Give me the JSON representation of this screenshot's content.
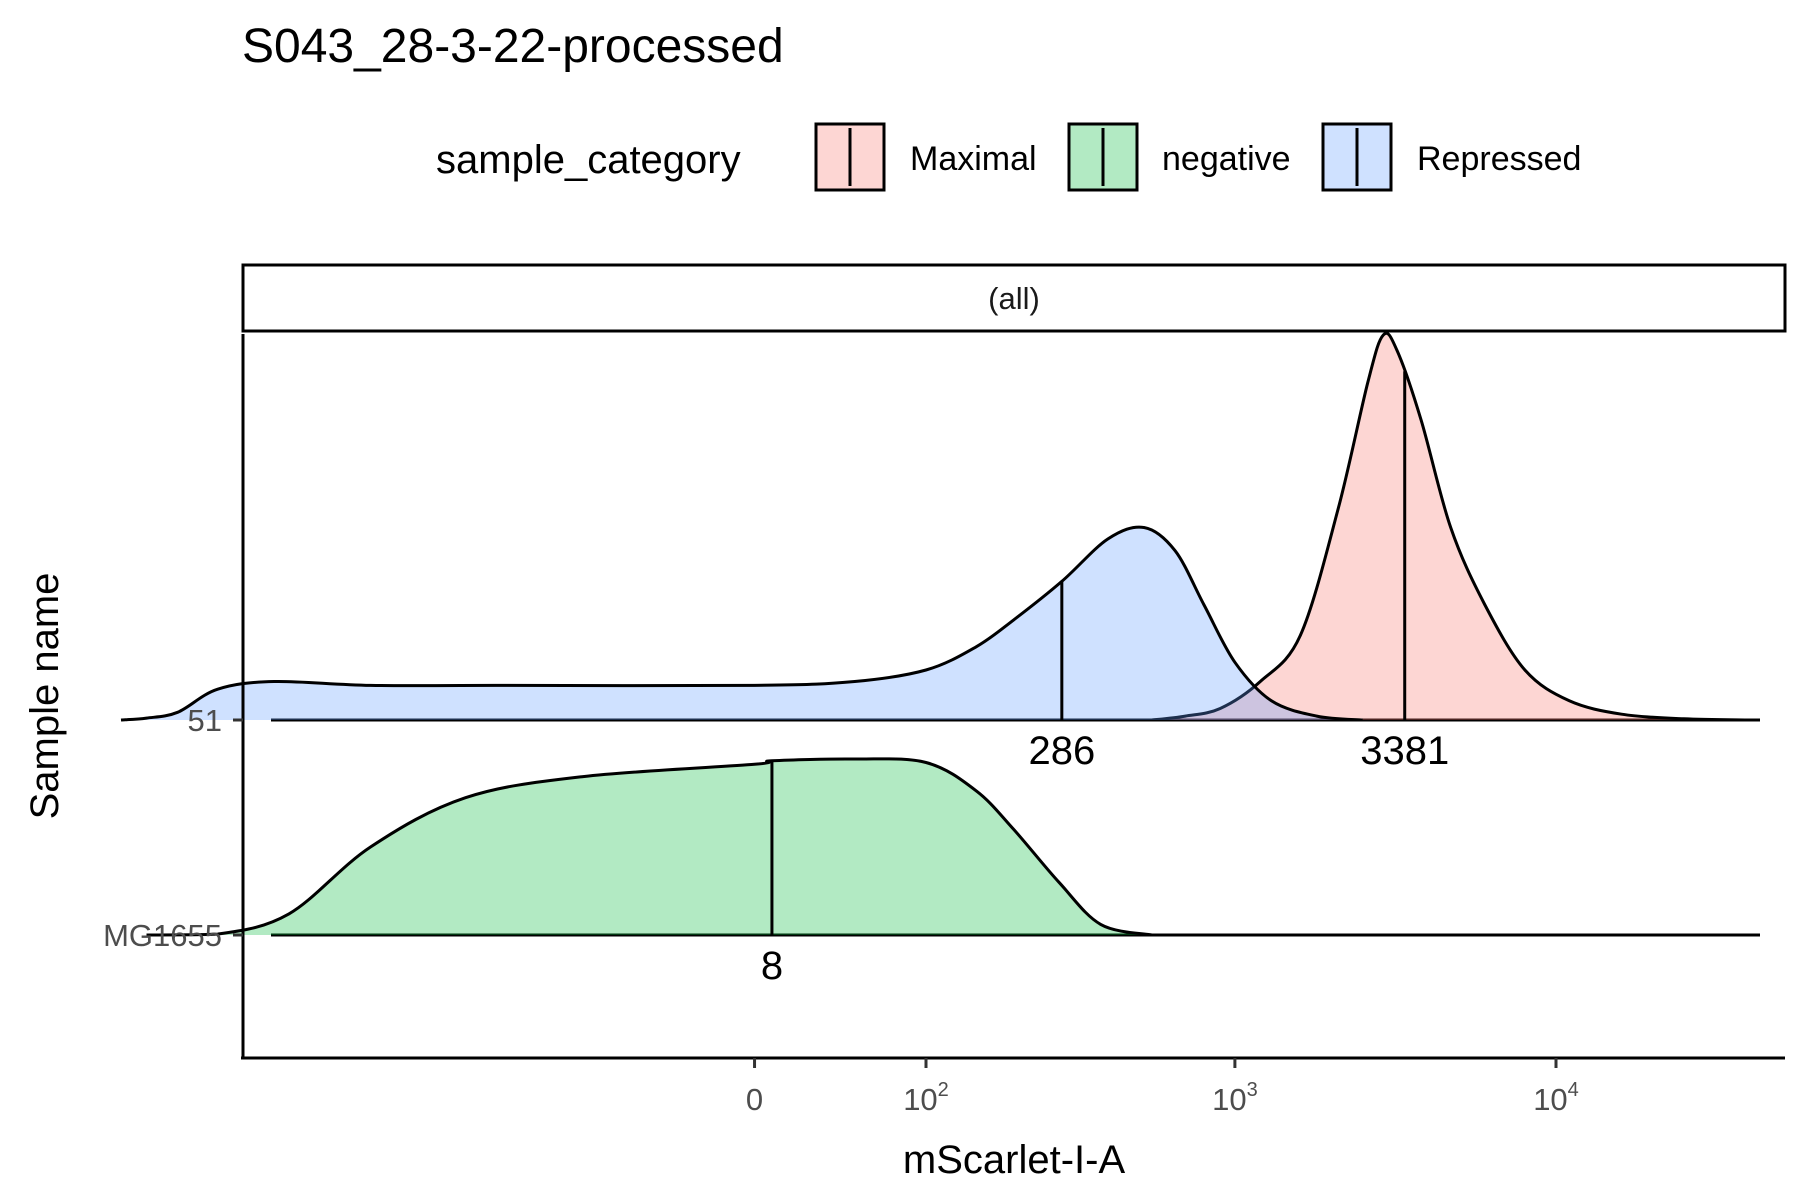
{
  "chart_data": {
    "type": "area",
    "subtype": "ridgeline-density",
    "title": "S043_28-3-22-processed",
    "xlabel": "mScarlet-I-A",
    "ylabel": "Sample name",
    "x_scale": "log-like (biexponential)",
    "x_ticks": [
      {
        "value": 0,
        "base": "0",
        "exp": ""
      },
      {
        "value": 100,
        "base": "10",
        "exp": "2"
      },
      {
        "value": 1000,
        "base": "10",
        "exp": "3"
      },
      {
        "value": 10000,
        "base": "10",
        "exp": "4"
      }
    ],
    "samples": [
      "51",
      "MG1655"
    ],
    "facet": "(all)",
    "legend": {
      "title": "sample_category",
      "position": "top",
      "entries": [
        {
          "name": "Maximal",
          "color": "#f8766d"
        },
        {
          "name": "negative",
          "color": "#00ba38"
        },
        {
          "name": "Repressed",
          "color": "#619cff"
        }
      ]
    },
    "series": [
      {
        "name": "Maximal",
        "sample": "51",
        "median": 3381,
        "median_label": "3381",
        "density_x": [
          550,
          700,
          900,
          1200,
          1600,
          2100,
          2600,
          2900,
          3200,
          3800,
          4700,
          6000,
          8000,
          11000,
          16000,
          25000,
          40000
        ],
        "density_y": [
          0.0,
          0.01,
          0.03,
          0.1,
          0.22,
          0.55,
          0.88,
          1.0,
          0.96,
          0.78,
          0.5,
          0.3,
          0.13,
          0.05,
          0.015,
          0.003,
          0.0
        ]
      },
      {
        "name": "Repressed",
        "sample": "51",
        "median": 286,
        "median_label": "286",
        "density_x": [
          -3000,
          -2500,
          -2000,
          -1500,
          -1000,
          -500,
          -200,
          0,
          50,
          100,
          150,
          200,
          286,
          400,
          520,
          650,
          800,
          1000,
          1300,
          1800,
          2500
        ],
        "density_y": [
          0.0,
          0.005,
          0.02,
          0.08,
          0.1,
          0.09,
          0.09,
          0.09,
          0.1,
          0.13,
          0.19,
          0.26,
          0.36,
          0.47,
          0.5,
          0.44,
          0.3,
          0.15,
          0.05,
          0.01,
          0.0
        ]
      },
      {
        "name": "negative",
        "sample": "MG1655",
        "median": 8,
        "median_label": "8",
        "density_x": [
          -2500,
          -1500,
          -900,
          -500,
          -250,
          -100,
          0,
          8,
          50,
          100,
          150,
          200,
          280,
          380,
          550
        ],
        "density_y": [
          0.0,
          0.005,
          0.12,
          0.5,
          0.78,
          0.9,
          0.97,
          0.99,
          1.0,
          0.98,
          0.82,
          0.6,
          0.3,
          0.06,
          0.0
        ]
      }
    ]
  }
}
